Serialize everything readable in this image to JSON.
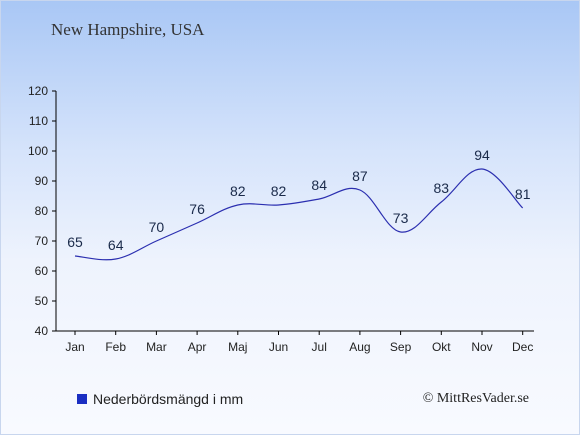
{
  "header": {
    "location": "New Hampshire, USA"
  },
  "legend": {
    "label": "Nederbördsmängd i mm"
  },
  "credit": {
    "text": "© MittResVader.se"
  },
  "colors": {
    "line": "#2b2fb0",
    "legend_swatch": "#1a2ec2",
    "axis": "#000000"
  },
  "chart_data": {
    "type": "line",
    "title": "New Hampshire, USA",
    "xlabel": "",
    "ylabel": "",
    "categories": [
      "Jan",
      "Feb",
      "Mar",
      "Apr",
      "Maj",
      "Jun",
      "Jul",
      "Aug",
      "Sep",
      "Okt",
      "Nov",
      "Dec"
    ],
    "series": [
      {
        "name": "Nederbördsmängd i mm",
        "values": [
          65,
          64,
          70,
          76,
          82,
          82,
          84,
          87,
          73,
          83,
          94,
          81
        ]
      }
    ],
    "ylim": [
      40,
      120
    ],
    "yticks": [
      40,
      50,
      60,
      70,
      80,
      90,
      100,
      110,
      120
    ],
    "grid": false,
    "legend_position": "bottom-left"
  }
}
